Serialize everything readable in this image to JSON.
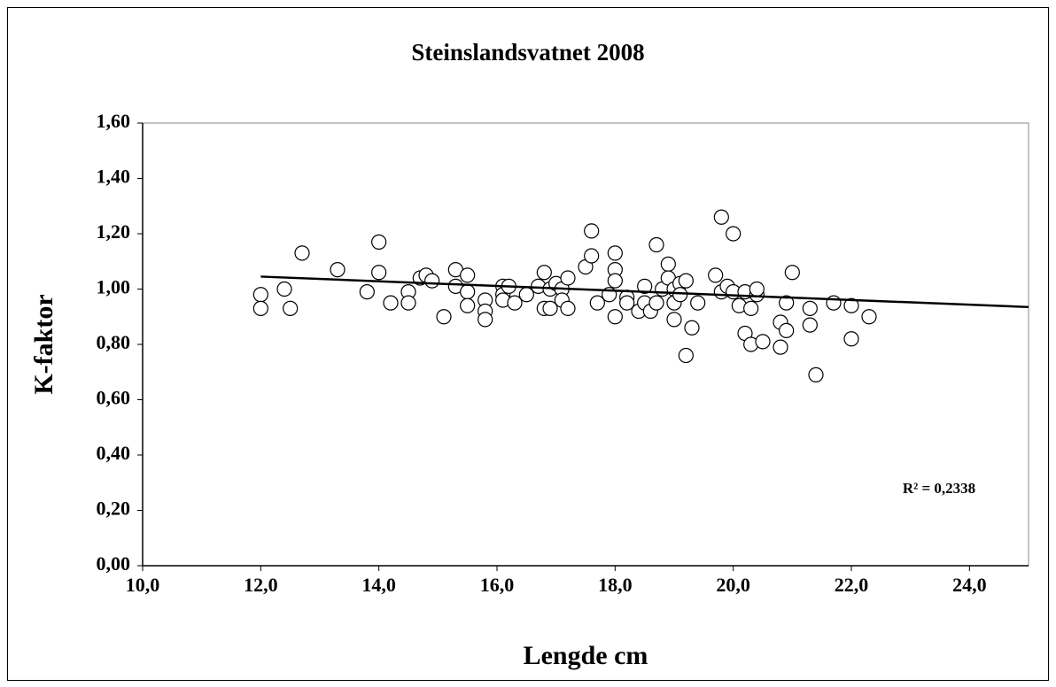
{
  "chart_data": {
    "type": "scatter",
    "title": "Steinslandsvatnet 2008",
    "x_label": "Lengde cm",
    "y_label": "K-faktor",
    "annotation": "R² = 0,2338",
    "marker_color": "#ffffff",
    "marker_edge_color": "#000000",
    "x": [
      12.0,
      12.0,
      12.4,
      12.5,
      12.7,
      13.3,
      13.8,
      14.0,
      14.0,
      14.2,
      14.5,
      14.5,
      14.7,
      14.8,
      14.9,
      15.1,
      15.3,
      15.3,
      15.5,
      15.5,
      15.5,
      15.8,
      15.8,
      15.8,
      16.1,
      16.1,
      16.1,
      16.2,
      16.3,
      16.5,
      16.7,
      16.8,
      16.8,
      16.9,
      16.9,
      17.0,
      17.1,
      17.1,
      17.2,
      17.2,
      17.5,
      17.6,
      17.6,
      17.7,
      17.9,
      18.0,
      18.0,
      18.0,
      18.0,
      18.2,
      18.2,
      18.4,
      18.5,
      18.5,
      18.6,
      18.7,
      18.7,
      18.8,
      18.9,
      18.9,
      19.0,
      19.0,
      19.0,
      19.1,
      19.1,
      19.2,
      19.2,
      19.3,
      19.4,
      19.7,
      19.8,
      19.8,
      19.9,
      20.0,
      20.0,
      20.1,
      20.2,
      20.2,
      20.3,
      20.3,
      20.4,
      20.4,
      20.5,
      20.8,
      20.8,
      20.9,
      20.9,
      21.0,
      21.3,
      21.3,
      21.4,
      21.7,
      22.0,
      22.0,
      22.3
    ],
    "values": [
      0.98,
      0.93,
      1.0,
      0.93,
      1.13,
      1.07,
      0.99,
      1.17,
      1.06,
      0.95,
      0.99,
      0.95,
      1.04,
      1.05,
      1.03,
      0.9,
      1.07,
      1.01,
      1.05,
      0.99,
      0.94,
      0.96,
      0.92,
      0.89,
      1.01,
      0.98,
      0.96,
      1.01,
      0.95,
      0.98,
      1.01,
      1.06,
      0.93,
      1.0,
      0.93,
      1.02,
      1.0,
      0.96,
      1.04,
      0.93,
      1.08,
      1.21,
      1.12,
      0.95,
      0.98,
      1.13,
      1.07,
      1.03,
      0.9,
      0.97,
      0.95,
      0.92,
      1.01,
      0.95,
      0.92,
      1.16,
      0.95,
      1.0,
      1.09,
      1.04,
      1.0,
      0.95,
      0.89,
      1.02,
      0.98,
      1.03,
      0.76,
      0.86,
      0.95,
      1.05,
      1.26,
      0.99,
      1.01,
      1.2,
      0.99,
      0.94,
      0.84,
      0.99,
      0.93,
      0.8,
      0.98,
      1.0,
      0.81,
      0.88,
      0.79,
      0.95,
      0.85,
      1.06,
      0.93,
      0.87,
      0.69,
      0.95,
      0.94,
      0.82,
      0.9
    ],
    "trendline": {
      "x": [
        12.0,
        25.0
      ],
      "values": [
        1.045,
        0.935
      ],
      "color": "#000000"
    },
    "xlim": [
      10,
      25
    ],
    "ylim": [
      0,
      1.6
    ],
    "xticks": [
      {
        "value": 10,
        "label": "10,0"
      },
      {
        "value": 12,
        "label": "12,0"
      },
      {
        "value": 14,
        "label": "14,0"
      },
      {
        "value": 16,
        "label": "16,0"
      },
      {
        "value": 18,
        "label": "18,0"
      },
      {
        "value": 20,
        "label": "20,0"
      },
      {
        "value": 22,
        "label": "22,0"
      },
      {
        "value": 24,
        "label": "24,0"
      }
    ],
    "yticks": [
      {
        "value": 0,
        "label": "0,00"
      },
      {
        "value": 0.2,
        "label": "0,20"
      },
      {
        "value": 0.4,
        "label": "0,40"
      },
      {
        "value": 0.6,
        "label": "0,60"
      },
      {
        "value": 0.8,
        "label": "0,80"
      },
      {
        "value": 1.0,
        "label": "1,00"
      },
      {
        "value": 1.2,
        "label": "1,20"
      },
      {
        "value": 1.4,
        "label": "1,40"
      },
      {
        "value": 1.6,
        "label": "1,60"
      }
    ],
    "grid": false
  }
}
